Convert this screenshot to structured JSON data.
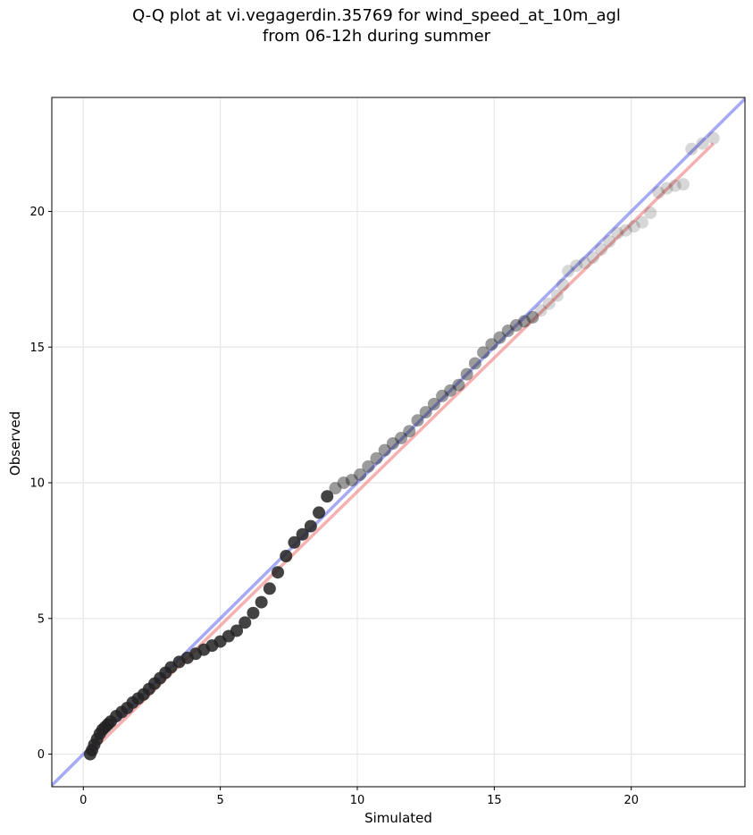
{
  "chart_data": {
    "type": "scatter",
    "title_line1": "Q-Q plot at vi.vegagerdin.35769 for wind_speed_at_10m_agl",
    "title_line2": "from 06-12h during summer",
    "xlabel": "Simulated",
    "ylabel": "Observed",
    "xlim": [
      -1.15,
      24.15
    ],
    "ylim": [
      -1.2,
      24.2
    ],
    "xticks": [
      0,
      5,
      10,
      15,
      20
    ],
    "yticks": [
      0,
      5,
      10,
      15,
      20
    ],
    "grid": true,
    "colors": {
      "points": "#222222",
      "identity_line": "#6a6ff0",
      "fit_line": "#f07b7b",
      "grid": "#e6e6e6"
    },
    "identity_line": {
      "x": [
        -1.15,
        24.15
      ],
      "y": [
        -1.15,
        24.15
      ]
    },
    "fit_line": {
      "x": [
        0.2,
        23.0
      ],
      "y": [
        0.0,
        22.5
      ]
    },
    "points": {
      "x": [
        0.25,
        0.32,
        0.4,
        0.5,
        0.6,
        0.7,
        0.8,
        0.9,
        1.0,
        1.2,
        1.4,
        1.6,
        1.8,
        2.0,
        2.2,
        2.4,
        2.6,
        2.8,
        3.0,
        3.2,
        3.5,
        3.8,
        4.1,
        4.4,
        4.7,
        5.0,
        5.3,
        5.6,
        5.9,
        6.2,
        6.5,
        6.8,
        7.1,
        7.4,
        7.7,
        8.0,
        8.3,
        8.6,
        8.9,
        9.2,
        9.5,
        9.8,
        10.1,
        10.4,
        10.7,
        11.0,
        11.3,
        11.6,
        11.9,
        12.2,
        12.5,
        12.8,
        13.1,
        13.4,
        13.7,
        14.0,
        14.3,
        14.6,
        14.9,
        15.2,
        15.5,
        15.8,
        16.1,
        16.4,
        16.7,
        17.0,
        17.3,
        17.5,
        17.7,
        18.0,
        18.3,
        18.6,
        18.9,
        19.2,
        19.5,
        19.8,
        20.1,
        20.4,
        20.7,
        21.0,
        21.3,
        21.6,
        21.9,
        22.2,
        22.6,
        23.0
      ],
      "y": [
        0.0,
        0.15,
        0.35,
        0.55,
        0.75,
        0.9,
        1.0,
        1.1,
        1.2,
        1.4,
        1.55,
        1.7,
        1.9,
        2.05,
        2.2,
        2.4,
        2.6,
        2.8,
        3.0,
        3.2,
        3.4,
        3.55,
        3.7,
        3.85,
        4.0,
        4.15,
        4.35,
        4.55,
        4.85,
        5.2,
        5.6,
        6.1,
        6.7,
        7.3,
        7.8,
        8.1,
        8.4,
        8.9,
        9.5,
        9.8,
        10.0,
        10.1,
        10.3,
        10.6,
        10.9,
        11.2,
        11.45,
        11.65,
        11.9,
        12.3,
        12.6,
        12.9,
        13.2,
        13.4,
        13.6,
        14.0,
        14.4,
        14.8,
        15.1,
        15.35,
        15.6,
        15.8,
        15.95,
        16.1,
        16.35,
        16.6,
        16.9,
        17.3,
        17.8,
        18.0,
        18.1,
        18.3,
        18.6,
        18.9,
        19.2,
        19.3,
        19.45,
        19.6,
        19.95,
        20.7,
        20.85,
        20.95,
        21.0,
        22.3,
        22.5,
        22.7
      ]
    }
  }
}
